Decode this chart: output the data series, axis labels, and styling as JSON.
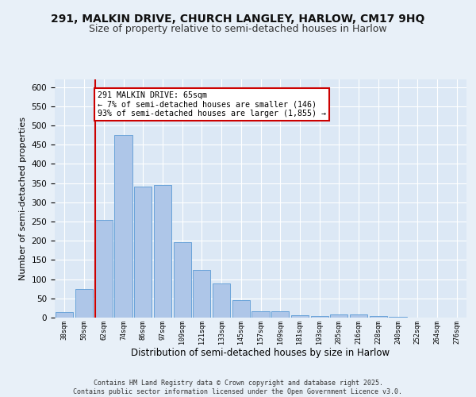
{
  "title1": "291, MALKIN DRIVE, CHURCH LANGLEY, HARLOW, CM17 9HQ",
  "title2": "Size of property relative to semi-detached houses in Harlow",
  "xlabel": "Distribution of semi-detached houses by size in Harlow",
  "ylabel": "Number of semi-detached properties",
  "categories": [
    "38sqm",
    "50sqm",
    "62sqm",
    "74sqm",
    "86sqm",
    "97sqm",
    "109sqm",
    "121sqm",
    "133sqm",
    "145sqm",
    "157sqm",
    "169sqm",
    "181sqm",
    "193sqm",
    "205sqm",
    "216sqm",
    "228sqm",
    "240sqm",
    "252sqm",
    "264sqm",
    "276sqm"
  ],
  "values": [
    15,
    75,
    255,
    475,
    340,
    345,
    197,
    125,
    88,
    46,
    16,
    16,
    7,
    4,
    8,
    8,
    4,
    2,
    1,
    1,
    1
  ],
  "bar_color": "#aec6e8",
  "bar_edge_color": "#5b9bd5",
  "vline_color": "#cc0000",
  "annotation_text": "291 MALKIN DRIVE: 65sqm\n← 7% of semi-detached houses are smaller (146)\n93% of semi-detached houses are larger (1,855) →",
  "annotation_box_color": "#ffffff",
  "annotation_box_edge": "#cc0000",
  "ylim": [
    0,
    620
  ],
  "yticks": [
    0,
    50,
    100,
    150,
    200,
    250,
    300,
    350,
    400,
    450,
    500,
    550,
    600
  ],
  "footer": "Contains HM Land Registry data © Crown copyright and database right 2025.\nContains public sector information licensed under the Open Government Licence v3.0.",
  "bg_color": "#e8f0f8",
  "plot_bg": "#dce8f5",
  "grid_color": "#ffffff",
  "title_fontsize": 10,
  "subtitle_fontsize": 9
}
